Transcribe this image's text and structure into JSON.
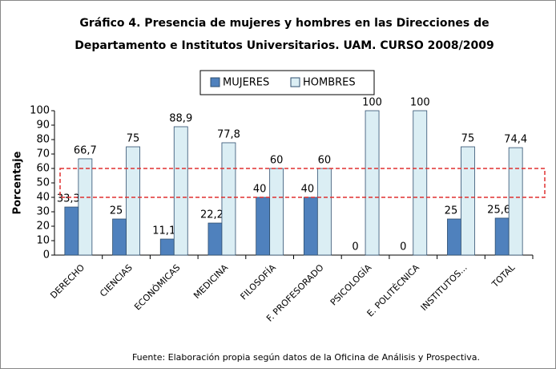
{
  "chart_data": {
    "type": "bar",
    "title": "Gráfico 4. Presencia de mujeres y hombres en las Direcciones de",
    "subtitle": "Departamento e Institutos Universitarios.  UAM. CURSO 2008/2009",
    "ylabel": "Porcentaje",
    "source": "Fuente: Elaboración propia según datos de la Oficina de Análisis y Prospectiva.",
    "categories": [
      "DERECHO",
      "CIENCIAS",
      "ECONÓMICAS",
      "MEDICINA",
      "FILOSOFÍA",
      "F. PROFESORADO",
      "PSICOLOGÍA",
      "E. POLITÉCNICA",
      "INSTITUTOS...",
      "TOTAL"
    ],
    "series": [
      {
        "name": "MUJERES",
        "color": "#4f81bd",
        "values": [
          33.3,
          25,
          11.1,
          22.2,
          40,
          40,
          0,
          0,
          25,
          25.6
        ],
        "value_labels": [
          "33,3",
          "25",
          "11,1",
          "22,2",
          "40",
          "40",
          "0",
          "0",
          "25",
          "25,6"
        ]
      },
      {
        "name": "HOMBRES",
        "color": "#dbeef4",
        "values": [
          66.7,
          75,
          88.9,
          77.8,
          60,
          60,
          100,
          100,
          75,
          74.4
        ],
        "value_labels": [
          "66,7",
          "75",
          "88,9",
          "77,8",
          "60",
          "60",
          "100",
          "100",
          "75",
          "74,4"
        ]
      }
    ],
    "ylim": [
      0,
      100
    ],
    "yticks": [
      0,
      10,
      20,
      30,
      40,
      50,
      60,
      70,
      80,
      90,
      100
    ],
    "highlight_range": [
      40,
      60
    ],
    "legend": "top"
  }
}
